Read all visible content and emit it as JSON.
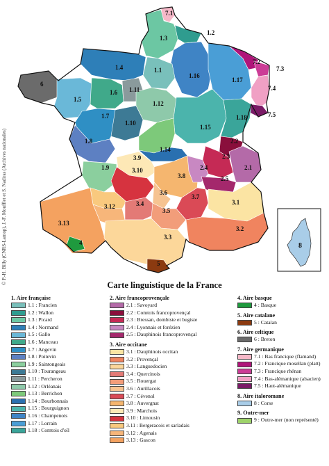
{
  "title": "Carte linguistique de la France",
  "credit": "© P.-H. Billy (CNRS-Lamop), J.-F. Moufflet et S. Nadiras (Archives nationales)",
  "map_labels": [
    "7.1",
    "1.2",
    "1.3",
    "1.4",
    "1.1",
    "6",
    "7.2",
    "7.3",
    "1.16",
    "1.17",
    "1.6",
    "1.11",
    "7.4",
    "1.5",
    "1.12",
    "1.7",
    "7.5",
    "1.10",
    "1.15",
    "1.18",
    "1.8",
    "2.2",
    "1.14",
    "3.9",
    "2.3",
    "1.9",
    "2.4",
    "2.1",
    "3.10",
    "3.8",
    "2.5",
    "3.6",
    "3.7",
    "3.12",
    "3.4",
    "3.1",
    "3.5",
    "3.13",
    "3.2",
    "4",
    "3.3",
    "5",
    "8"
  ],
  "legend": {
    "groups": [
      {
        "title": "1. Aire française",
        "items": [
          {
            "label": "1.1 : Francien",
            "color": "#79c0bb"
          },
          {
            "label": "1.2 : Wallon",
            "color": "#2f9c8f"
          },
          {
            "label": "1.3 : Picard",
            "color": "#6cc7a3"
          },
          {
            "label": "1.4 : Normand",
            "color": "#2e7fb8"
          },
          {
            "label": "1.5 : Gallo",
            "color": "#6ab8d8"
          },
          {
            "label": "1.6 : Manceau",
            "color": "#40a98a"
          },
          {
            "label": "1.7 : Angevin",
            "color": "#2f8fc4"
          },
          {
            "label": "1.8 : Poitevin",
            "color": "#5d80c2"
          },
          {
            "label": "1.9 : Saintongeais",
            "color": "#8bcf9e"
          },
          {
            "label": "1.10 : Tourangeau",
            "color": "#3d7a95"
          },
          {
            "label": "1.11 : Percheron",
            "color": "#8a9a9c"
          },
          {
            "label": "1.12 : Orléanais",
            "color": "#8ec9aa"
          },
          {
            "label": "1.13 : Berrichon",
            "color": "#7dc97a"
          },
          {
            "label": "1.14 : Bourbonnais",
            "color": "#2a70b0"
          },
          {
            "label": "1.15 : Bourguignon",
            "color": "#4bb4ac"
          },
          {
            "label": "1.16 : Champenois",
            "color": "#3f84c5"
          },
          {
            "label": "1.17 : Lorrain",
            "color": "#4a9ed6"
          },
          {
            "label": "1.18 : Comtois d'oïl",
            "color": "#3aa59a"
          }
        ]
      },
      {
        "title": "2. Aire francoprovençale",
        "items": [
          {
            "label": "2.1 : Savoyard",
            "color": "#b46aa8"
          },
          {
            "label": "2.2 : Comtois francoprovençal",
            "color": "#8a0f3c"
          },
          {
            "label": "2.3 : Bressan, dombiste et bugiste",
            "color": "#c52a55"
          },
          {
            "label": "2.4 : Lyonnais et forézien",
            "color": "#c888c2"
          },
          {
            "label": "2.5 : Dauphinois francoprovençal",
            "color": "#a4286c"
          }
        ]
      },
      {
        "title": "3. Aire occitane",
        "items": [
          {
            "label": "3.1 : Dauphinois occitan",
            "color": "#fbe4a3"
          },
          {
            "label": "3.2 : Provençal",
            "color": "#f0845f"
          },
          {
            "label": "3.3 : Languedocien",
            "color": "#fcd79a"
          },
          {
            "label": "3.4 : Quercinois",
            "color": "#e37a76"
          },
          {
            "label": "3.5 : Rouergat",
            "color": "#f29d7a"
          },
          {
            "label": "3.6 : Aurillacois",
            "color": "#f6c391"
          },
          {
            "label": "3.7 : Cévenol",
            "color": "#da4a56"
          },
          {
            "label": "3.8 : Auvergnat",
            "color": "#f5b66f"
          },
          {
            "label": "3.9 : Marchois",
            "color": "#fde8b6"
          },
          {
            "label": "3.10 : Limousin",
            "color": "#d6333f"
          },
          {
            "label": "3.11 : Bergeracois et sarladais",
            "color": "#f9c97e"
          },
          {
            "label": "3.12 : Agenais",
            "color": "#f7b67a"
          },
          {
            "label": "3.13 : Gascon",
            "color": "#f4a260"
          }
        ]
      },
      {
        "title": "4. Aire basque",
        "items": [
          {
            "label": "4 : Basque",
            "color": "#1f9a3e"
          }
        ]
      },
      {
        "title": "5. Aire catalane",
        "items": [
          {
            "label": "5 : Catalan",
            "color": "#8b3a10"
          }
        ]
      },
      {
        "title": "6. Aire celtique",
        "items": [
          {
            "label": "6 : Breton",
            "color": "#6b6b6b"
          }
        ]
      },
      {
        "title": "7. Aire germanique",
        "items": [
          {
            "label": "7.1 : Bas francique (flamand)",
            "color": "#f6b8c8"
          },
          {
            "label": "7.2 : Francique mosellan (platt)",
            "color": "#b0147a"
          },
          {
            "label": "7.3 : Francique rhénan",
            "color": "#cc3c96"
          },
          {
            "label": "7.4 : Bas-alémanique (alsacien)",
            "color": "#f0a0c4"
          },
          {
            "label": "7.5 : Haut-alémanique",
            "color": "#7a1a66"
          }
        ]
      },
      {
        "title": "8. Aire italoromane",
        "items": [
          {
            "label": "8 : Corse",
            "color": "#a9cde8"
          }
        ]
      },
      {
        "title": "9. Outre-mer",
        "items": [
          {
            "label": "9 : Outre-mer (non représenté)",
            "color": "#9ed36a"
          }
        ]
      }
    ]
  },
  "colors": {
    "outline": "#111111",
    "sea": "#ffffff"
  }
}
